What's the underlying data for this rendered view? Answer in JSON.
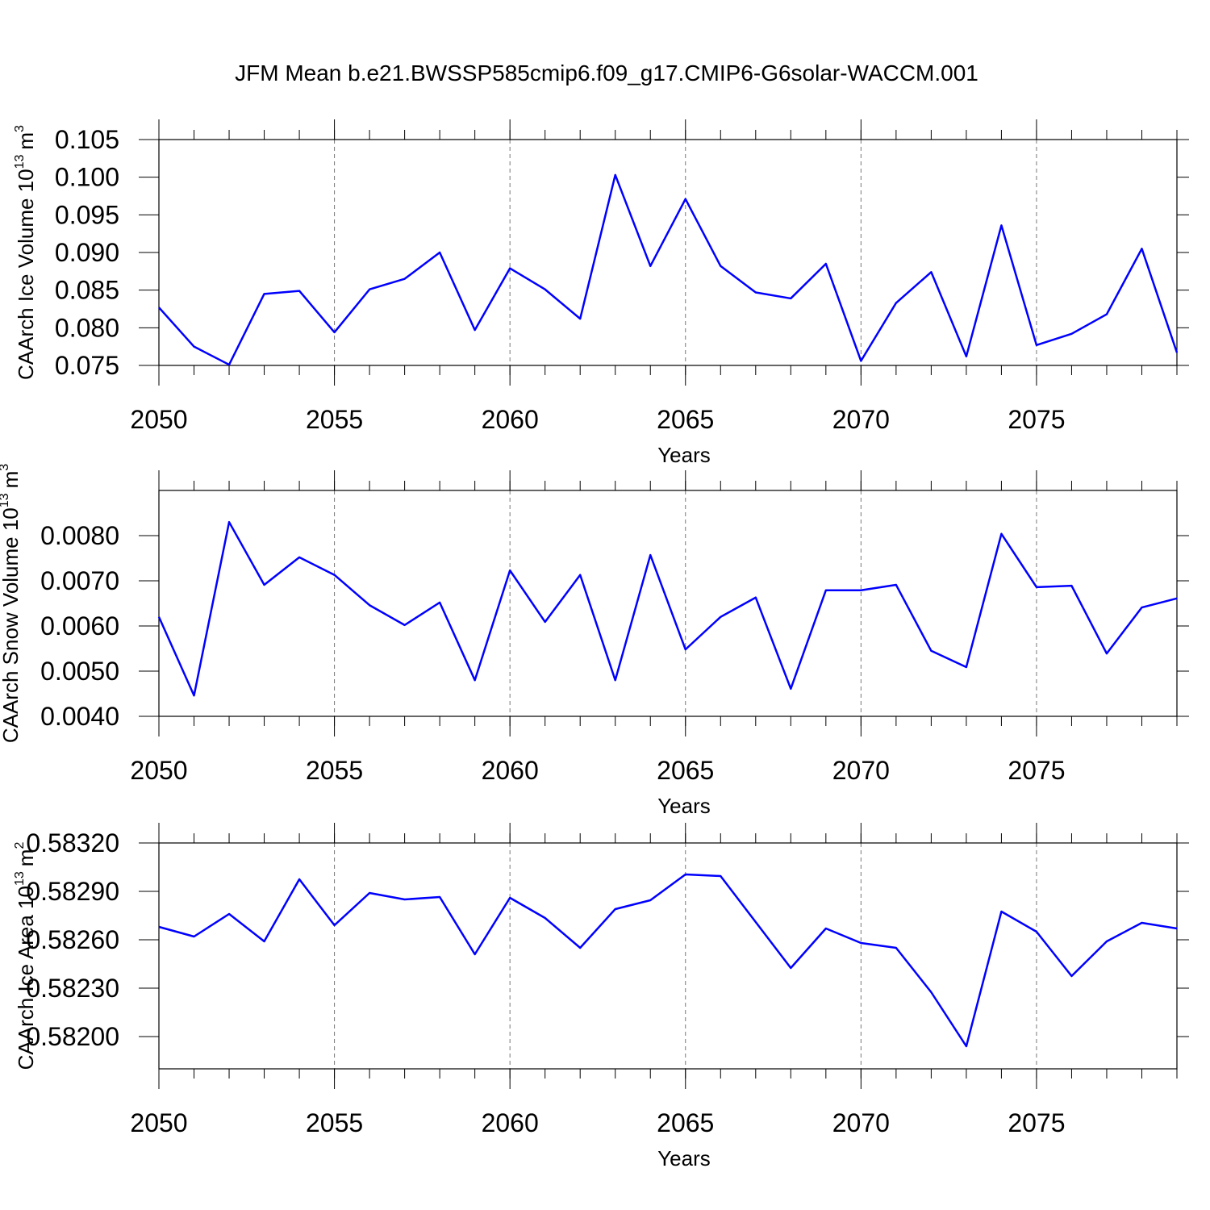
{
  "chart_data": [
    {
      "type": "line",
      "title": "JFM Mean b.e21.BWSSP585cmip6.f09_g17.CMIP6-G6solar-WACCM.001",
      "y_label": [
        "CAArch Ice Volume 10",
        "13",
        "m",
        "3"
      ],
      "x_label": "Years",
      "x": [
        2050,
        2051,
        2052,
        2053,
        2054,
        2055,
        2056,
        2057,
        2058,
        2059,
        2060,
        2061,
        2062,
        2063,
        2064,
        2065,
        2066,
        2067,
        2068,
        2069,
        2070,
        2071,
        2072,
        2073,
        2074,
        2075,
        2076,
        2077,
        2078,
        2079
      ],
      "values": [
        0.0827,
        0.0775,
        0.0751,
        0.0845,
        0.0849,
        0.0794,
        0.0851,
        0.0865,
        0.09,
        0.0797,
        0.0879,
        0.0851,
        0.0812,
        0.1003,
        0.0882,
        0.0971,
        0.0882,
        0.0847,
        0.0839,
        0.0885,
        0.0756,
        0.0833,
        0.0874,
        0.0762,
        0.0936,
        0.0777,
        0.0792,
        0.0818,
        0.0905,
        0.0767
      ],
      "color": "#0000ff",
      "xlim": [
        2050,
        2079
      ],
      "xticks": [
        2050,
        2055,
        2060,
        2065,
        2070,
        2075
      ],
      "ylim": [
        0.075,
        0.105
      ],
      "yticks": [
        0.075,
        0.08,
        0.085,
        0.09,
        0.095,
        0.1,
        0.105
      ],
      "grid": "x-dashed",
      "ytick_labels": [
        "0.075",
        "0.080",
        "0.085",
        "0.090",
        "0.095",
        "0.100",
        "0.105"
      ]
    },
    {
      "type": "line",
      "y_label": [
        "CAArch Snow Volume 10",
        "13",
        "m",
        "3"
      ],
      "x_label": "Years",
      "x": [
        2050,
        2051,
        2052,
        2053,
        2054,
        2055,
        2056,
        2057,
        2058,
        2059,
        2060,
        2061,
        2062,
        2063,
        2064,
        2065,
        2066,
        2067,
        2068,
        2069,
        2070,
        2071,
        2072,
        2073,
        2074,
        2075,
        2076,
        2077,
        2078,
        2079
      ],
      "values": [
        0.0062,
        0.00446,
        0.0083,
        0.00691,
        0.00752,
        0.00713,
        0.00646,
        0.00602,
        0.00652,
        0.0048,
        0.00723,
        0.00609,
        0.00713,
        0.0048,
        0.00757,
        0.00548,
        0.0062,
        0.00663,
        0.00461,
        0.00679,
        0.00679,
        0.00691,
        0.00545,
        0.00509,
        0.00804,
        0.00686,
        0.00689,
        0.00539,
        0.00641,
        0.00661
      ],
      "color": "#0000ff",
      "xlim": [
        2050,
        2079
      ],
      "xticks": [
        2050,
        2055,
        2060,
        2065,
        2070,
        2075
      ],
      "ylim": [
        0.004,
        0.009
      ],
      "yticks": [
        0.004,
        0.005,
        0.006,
        0.007,
        0.008
      ],
      "grid": "x-dashed",
      "ytick_labels": [
        "0.0040",
        "0.0050",
        "0.0060",
        "0.0070",
        "0.0080"
      ]
    },
    {
      "type": "line",
      "y_label": [
        "CAArch Ice Area 10",
        "13",
        "m",
        "2"
      ],
      "x_label": "Years",
      "x": [
        2050,
        2051,
        2052,
        2053,
        2054,
        2055,
        2056,
        2057,
        2058,
        2059,
        2060,
        2061,
        2062,
        2063,
        2064,
        2065,
        2066,
        2067,
        2068,
        2069,
        2070,
        2071,
        2072,
        2073,
        2074,
        2075,
        2076,
        2077,
        2078,
        2079
      ],
      "values": [
        0.58268,
        0.58262,
        0.58276,
        0.58259,
        0.582975,
        0.58269,
        0.58289,
        0.58285,
        0.582865,
        0.58251,
        0.58286,
        0.582735,
        0.58255,
        0.58279,
        0.582845,
        0.583005,
        0.582995,
        0.58271,
        0.582425,
        0.58267,
        0.58258,
        0.58255,
        0.582275,
        0.58194,
        0.582775,
        0.58265,
        0.582375,
        0.58259,
        0.582705,
        0.58267
      ],
      "color": "#0000ff",
      "xlim": [
        2050,
        2079
      ],
      "xticks": [
        2050,
        2055,
        2060,
        2065,
        2070,
        2075
      ],
      "ylim": [
        0.5818,
        0.5832
      ],
      "yticks": [
        0.582,
        0.5823,
        0.5826,
        0.5829,
        0.5832
      ],
      "grid": "x-dashed",
      "ytick_labels": [
        "0.58200",
        "0.58230",
        "0.58260",
        "0.58290",
        "0.58320"
      ]
    }
  ]
}
